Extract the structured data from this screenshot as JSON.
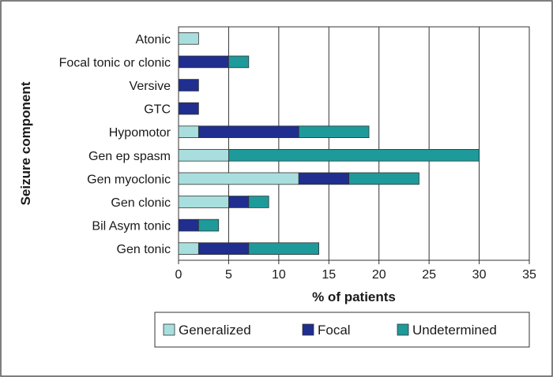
{
  "chart_data": {
    "type": "bar",
    "orientation": "horizontal",
    "stacked": true,
    "xlabel": "% of patients",
    "ylabel": "Seizure component",
    "xlim": [
      0,
      35
    ],
    "xticks": [
      0,
      5,
      10,
      15,
      20,
      25,
      30,
      35
    ],
    "grid": true,
    "legend_position": "bottom",
    "categories": [
      "Atonic",
      "Focal tonic or clonic",
      "Versive",
      "GTC",
      "Hypomotor",
      "Gen ep spasm",
      "Gen myoclonic",
      "Gen clonic",
      "Bil Asym tonic",
      "Gen tonic"
    ],
    "series": [
      {
        "name": "Generalized",
        "color": "#a8dede",
        "values": [
          2,
          0,
          0,
          0,
          2,
          5,
          12,
          5,
          0,
          2
        ]
      },
      {
        "name": "Focal",
        "color": "#1f2e8f",
        "values": [
          0,
          5,
          2,
          2,
          10,
          0,
          5,
          2,
          2,
          5
        ]
      },
      {
        "name": "Undetermined",
        "color": "#1e9a9a",
        "values": [
          0,
          2,
          0,
          0,
          7,
          25,
          7,
          2,
          2,
          7
        ]
      }
    ]
  }
}
